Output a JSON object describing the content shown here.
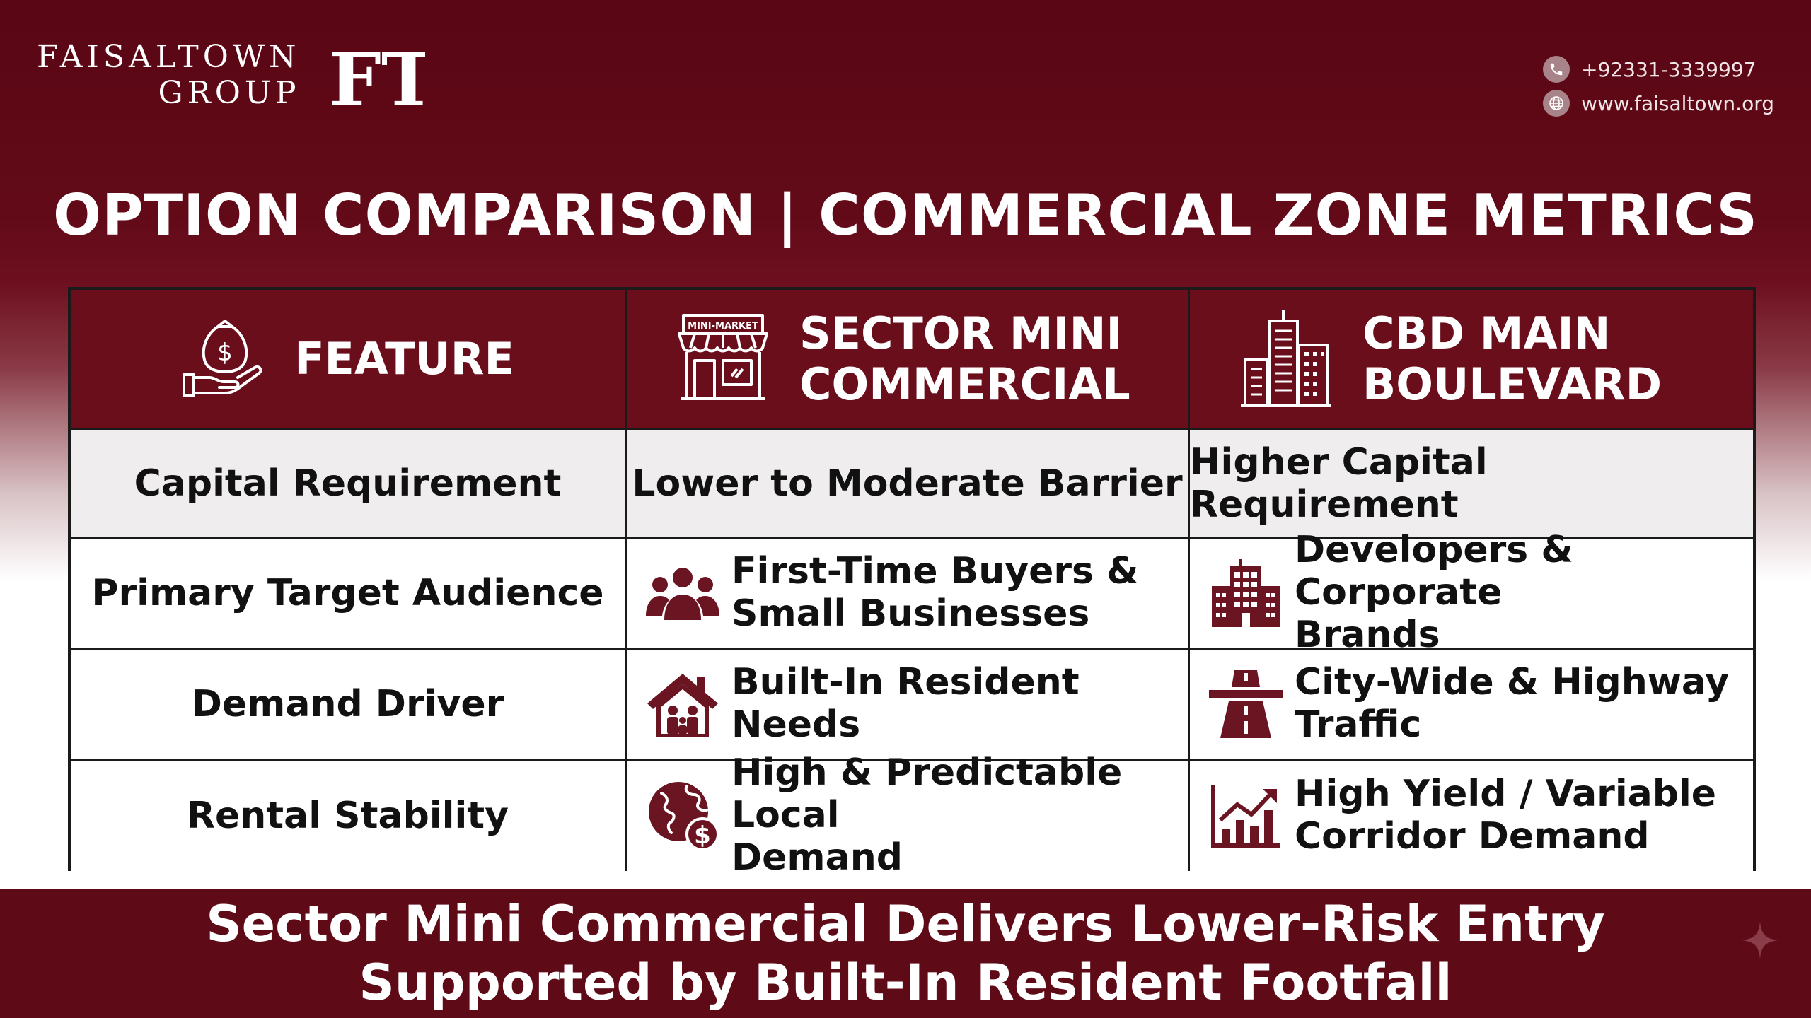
{
  "brand": {
    "line1": "FAISALTOWN",
    "line2": "GROUP",
    "monogram": "FT"
  },
  "contact": {
    "phone": "+92331-3339997",
    "phone_icon": "phone-icon",
    "website": "www.faisaltown.org",
    "website_icon": "globe-icon"
  },
  "title": "OPTION COMPARISON | COMMERCIAL ZONE METRICS",
  "table": {
    "headers": [
      {
        "label": "FEATURE",
        "icon": "money-bag-hand-icon"
      },
      {
        "label": "SECTOR MINI COMMERCIAL",
        "line1": "SECTOR MINI",
        "line2": "COMMERCIAL",
        "icon": "mini-market-icon",
        "icon_sign": "MINI-MARKET"
      },
      {
        "label": "CBD MAIN BOULEVARD",
        "line1": "CBD MAIN",
        "line2": "BOULEVARD",
        "icon": "city-buildings-icon"
      }
    ],
    "rows": [
      {
        "feature": "Capital Requirement",
        "sector": {
          "text": "Lower to Moderate Barrier"
        },
        "cbd": {
          "text": "Higher Capital Requirement"
        }
      },
      {
        "feature": "Primary Target Audience",
        "sector": {
          "line1": "First-Time Buyers &",
          "line2": "Small Businesses",
          "icon": "people-group-icon"
        },
        "cbd": {
          "line1": "Developers & Corporate",
          "line2": "Brands",
          "icon": "office-building-icon"
        }
      },
      {
        "feature": "Demand Driver",
        "sector": {
          "text": "Built-In Resident Needs",
          "icon": "house-family-icon"
        },
        "cbd": {
          "line1": "City-Wide & Highway",
          "line2": "Traffic",
          "icon": "highway-icon"
        }
      },
      {
        "feature": "Rental Stability",
        "sector": {
          "line1": "High & Predictable Local",
          "line2": "Demand",
          "icon": "globe-dollar-icon"
        },
        "cbd": {
          "line1": "High Yield / Variable",
          "line2": "Corridor Demand",
          "icon": "growth-chart-icon"
        }
      }
    ]
  },
  "footer": {
    "line1": "Sector Mini Commercial Delivers Lower-Risk Entry",
    "line2": "Supported by Built-In Resident Footfall"
  },
  "colors": {
    "maroon_dark": "#5a0614",
    "header_maroon": "#6a0e1c",
    "icon_maroon": "#6b1422",
    "text_dark": "#111111"
  }
}
